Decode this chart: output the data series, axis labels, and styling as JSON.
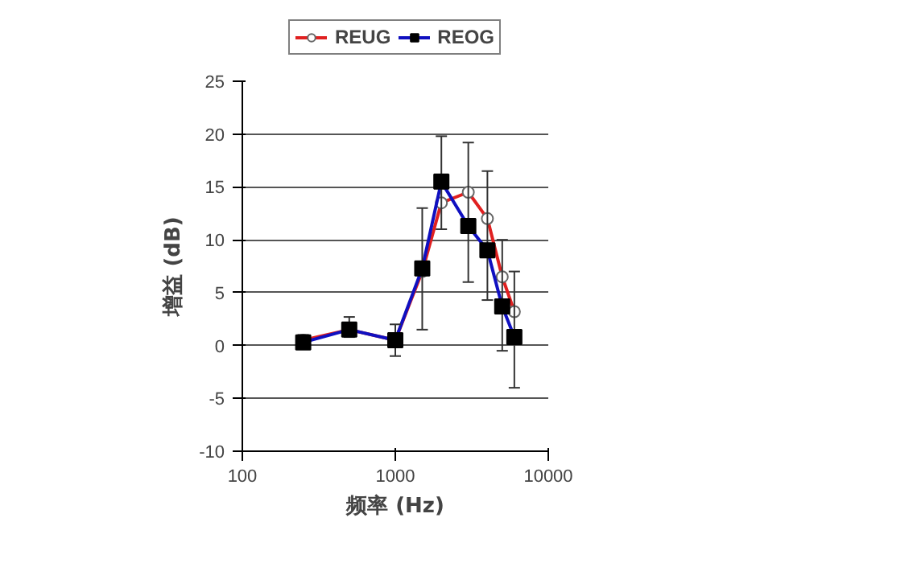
{
  "chart_data": {
    "type": "line",
    "xlabel": "频率 (Hz)",
    "ylabel": "增益 (dB)",
    "log": "x",
    "xlim": [
      100,
      10000
    ],
    "xticks": [
      100,
      1000,
      10000
    ],
    "ylim": [
      -10,
      25
    ],
    "yticks": [
      -10,
      -5,
      0,
      5,
      10,
      15,
      20,
      25
    ],
    "grid": "y",
    "legend": "top",
    "x": [
      250,
      500,
      1000,
      1500,
      2000,
      3000,
      4000,
      5000,
      6000
    ],
    "series": [
      {
        "name": "REUG",
        "color": "#e02020",
        "marker": "circle",
        "values": [
          0.5,
          1.5,
          0.5,
          7,
          13.5,
          14.5,
          12,
          6.5,
          3.2
        ]
      },
      {
        "name": "REOG",
        "color": "#1010c0",
        "marker": "square",
        "values": [
          0.3,
          1.5,
          0.5,
          7.3,
          15.5,
          11.3,
          9,
          3.7,
          0.8
        ],
        "errors": [
          [
            0,
            1
          ],
          [
            0.8,
            2.7
          ],
          [
            -1,
            2
          ],
          [
            1.5,
            13
          ],
          [
            11,
            19.8
          ],
          [
            6,
            19.2
          ],
          [
            4.3,
            16.5
          ],
          [
            -0.5,
            10
          ],
          [
            -4,
            7
          ]
        ]
      }
    ]
  }
}
